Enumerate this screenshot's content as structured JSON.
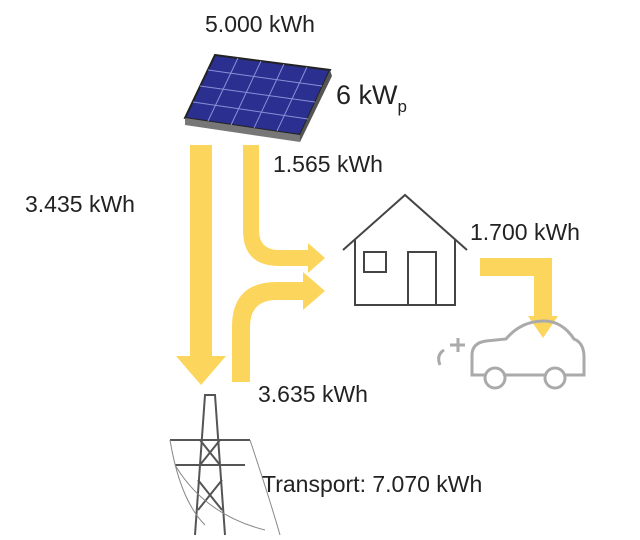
{
  "labels": {
    "pv_yield": "5.000 kWh",
    "pv_power": {
      "text": "6 kW",
      "subscript": "p"
    },
    "self_consumption": "1.565 kWh",
    "feed_in": "3.435 kWh",
    "ev_charging": "1.700 kWh",
    "grid_purchase": "3.635 kWh",
    "transport": "Transport: 7.070 kWh"
  }
}
